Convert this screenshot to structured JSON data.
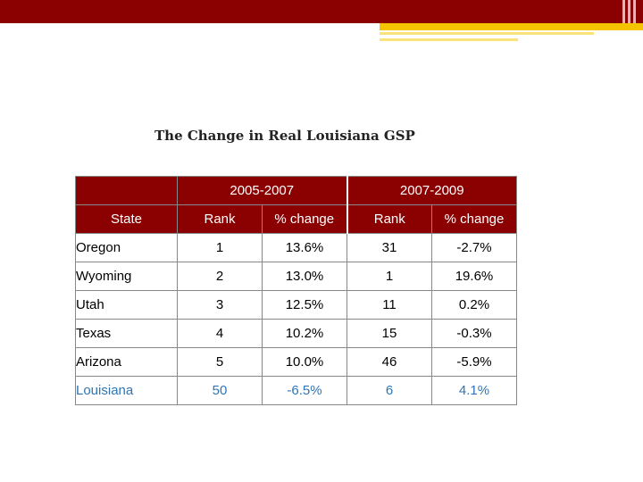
{
  "slide": {
    "title": "The Change in Real Louisiana GSP"
  },
  "table": {
    "period_headers": [
      "2005-2007",
      "2007-2009"
    ],
    "state_header": "State",
    "sub_headers": [
      "Rank",
      "% change",
      "Rank",
      "% change"
    ],
    "rows": [
      {
        "state": "Oregon",
        "rank1": "1",
        "change1": "13.6%",
        "rank2": "31",
        "change2": "-2.7%"
      },
      {
        "state": "Wyoming",
        "rank1": "2",
        "change1": "13.0%",
        "rank2": "1",
        "change2": "19.6%"
      },
      {
        "state": "Utah",
        "rank1": "3",
        "change1": "12.5%",
        "rank2": "11",
        "change2": "0.2%"
      },
      {
        "state": "Texas",
        "rank1": "4",
        "change1": "10.2%",
        "rank2": "15",
        "change2": "-0.3%"
      },
      {
        "state": "Arizona",
        "rank1": "5",
        "change1": "10.0%",
        "rank2": "46",
        "change2": "-5.9%"
      },
      {
        "state": "Louisiana",
        "rank1": "50",
        "change1": "-6.5%",
        "rank2": "6",
        "change2": "4.1%"
      }
    ]
  },
  "colors": {
    "header_bg": "#8b0000",
    "accent_gold": "#f5c400",
    "highlight_text": "#2e75b6"
  }
}
